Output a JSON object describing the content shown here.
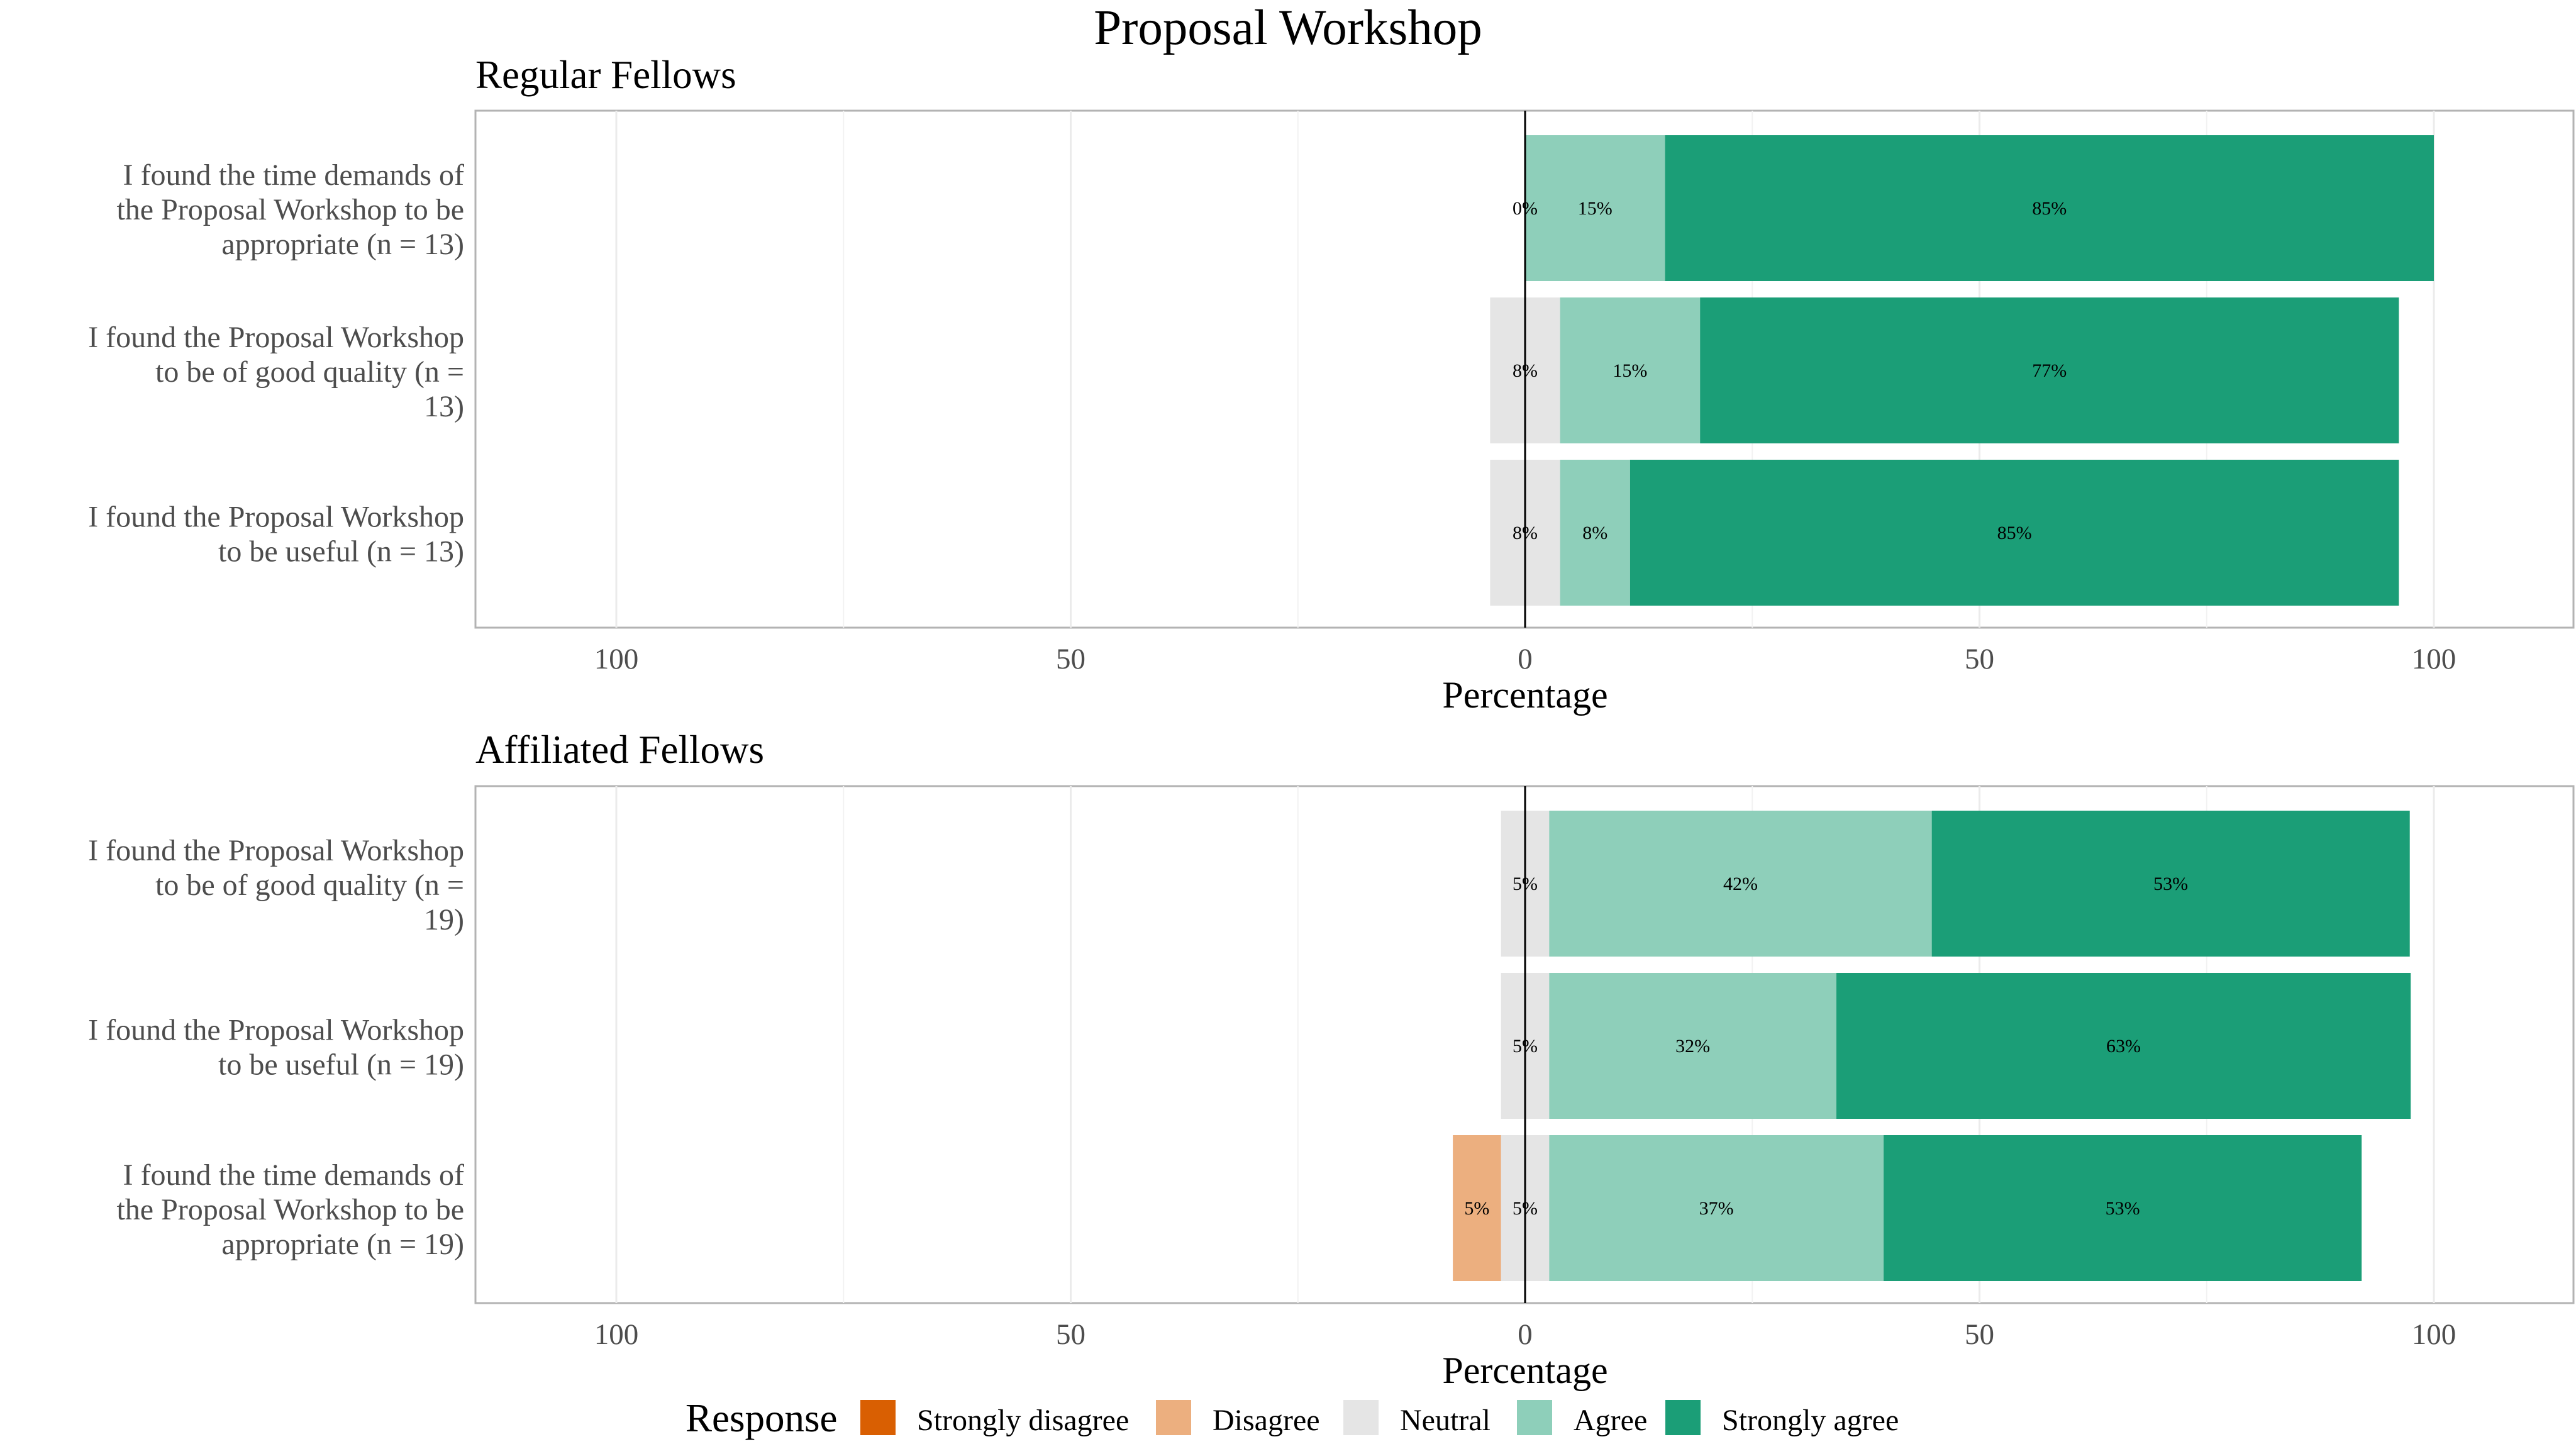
{
  "figure": {
    "title": "Proposal Workshop",
    "legend_title": "Response"
  },
  "chart_data": [
    {
      "type": "bar",
      "orientation": "horizontal-diverging",
      "title": "Regular Fellows",
      "xlabel": "Percentage",
      "xlim": [
        -100,
        100
      ],
      "xticks": [
        -100,
        -50,
        0,
        50,
        100
      ],
      "xtick_labels": [
        "100",
        "50",
        "0",
        "50",
        "100"
      ],
      "center": 0,
      "grid": true,
      "categories": [
        "I found the time demands of the Proposal Workshop to be appropriate (n = 13)",
        "I found the Proposal Workshop to be of good quality (n = 13)",
        "I found the Proposal Workshop to be useful (n = 13)"
      ],
      "category_lines": [
        [
          "I found the time demands of",
          "the Proposal Workshop to be",
          "appropriate (n = 13)"
        ],
        [
          "I found the Proposal Workshop",
          "to be of good quality (n =",
          "13)"
        ],
        [
          "I found the Proposal Workshop",
          "to be useful (n = 13)"
        ]
      ],
      "series": [
        {
          "name": "Strongly disagree",
          "values": [
            0,
            0,
            0
          ]
        },
        {
          "name": "Disagree",
          "values": [
            0,
            0,
            0
          ]
        },
        {
          "name": "Neutral",
          "values": [
            0,
            7.7,
            7.7
          ]
        },
        {
          "name": "Agree",
          "values": [
            15.4,
            15.4,
            7.7
          ]
        },
        {
          "name": "Strongly agree",
          "values": [
            84.6,
            76.9,
            84.6
          ]
        }
      ],
      "segment_labels": [
        [
          null,
          null,
          "0%",
          "15%",
          "85%"
        ],
        [
          null,
          null,
          "8%",
          "15%",
          "77%"
        ],
        [
          null,
          null,
          "8%",
          "8%",
          "85%"
        ]
      ]
    },
    {
      "type": "bar",
      "orientation": "horizontal-diverging",
      "title": "Affiliated Fellows",
      "xlabel": "Percentage",
      "xlim": [
        -100,
        100
      ],
      "xticks": [
        -100,
        -50,
        0,
        50,
        100
      ],
      "xtick_labels": [
        "100",
        "50",
        "0",
        "50",
        "100"
      ],
      "center": 0,
      "grid": true,
      "categories": [
        "I found the Proposal Workshop to be of good quality (n = 19)",
        "I found the Proposal Workshop to be useful (n = 19)",
        "I found the time demands of the Proposal Workshop to be appropriate (n = 19)"
      ],
      "category_lines": [
        [
          "I found the Proposal Workshop",
          "to be of good quality (n =",
          "19)"
        ],
        [
          "I found the Proposal Workshop",
          "to be useful (n = 19)"
        ],
        [
          "I found the time demands of",
          "the Proposal Workshop to be",
          "appropriate (n = 19)"
        ]
      ],
      "series": [
        {
          "name": "Strongly disagree",
          "values": [
            0,
            0,
            0
          ]
        },
        {
          "name": "Disagree",
          "values": [
            0,
            0,
            5.3
          ]
        },
        {
          "name": "Neutral",
          "values": [
            5.3,
            5.3,
            5.3
          ]
        },
        {
          "name": "Agree",
          "values": [
            42.1,
            31.6,
            36.8
          ]
        },
        {
          "name": "Strongly agree",
          "values": [
            52.6,
            63.2,
            52.6
          ]
        }
      ],
      "segment_labels": [
        [
          null,
          null,
          "5%",
          "42%",
          "53%"
        ],
        [
          null,
          null,
          "5%",
          "32%",
          "63%"
        ],
        [
          null,
          "5%",
          "5%",
          "37%",
          "53%"
        ]
      ]
    }
  ],
  "legend": {
    "title": "Response",
    "items": [
      {
        "label": "Strongly disagree",
        "color": "#D95F02"
      },
      {
        "label": "Disagree",
        "color": "#ECAF7F"
      },
      {
        "label": "Neutral",
        "color": "#E5E5E5"
      },
      {
        "label": "Agree",
        "color": "#8ECFBA"
      },
      {
        "label": "Strongly agree",
        "color": "#1B9E77"
      }
    ]
  },
  "colors": {
    "Strongly disagree": "#D95F02",
    "Disagree": "#ECAF7F",
    "Neutral": "#E5E5E5",
    "Agree": "#8ECFBA",
    "Strongly agree": "#1B9E77"
  }
}
